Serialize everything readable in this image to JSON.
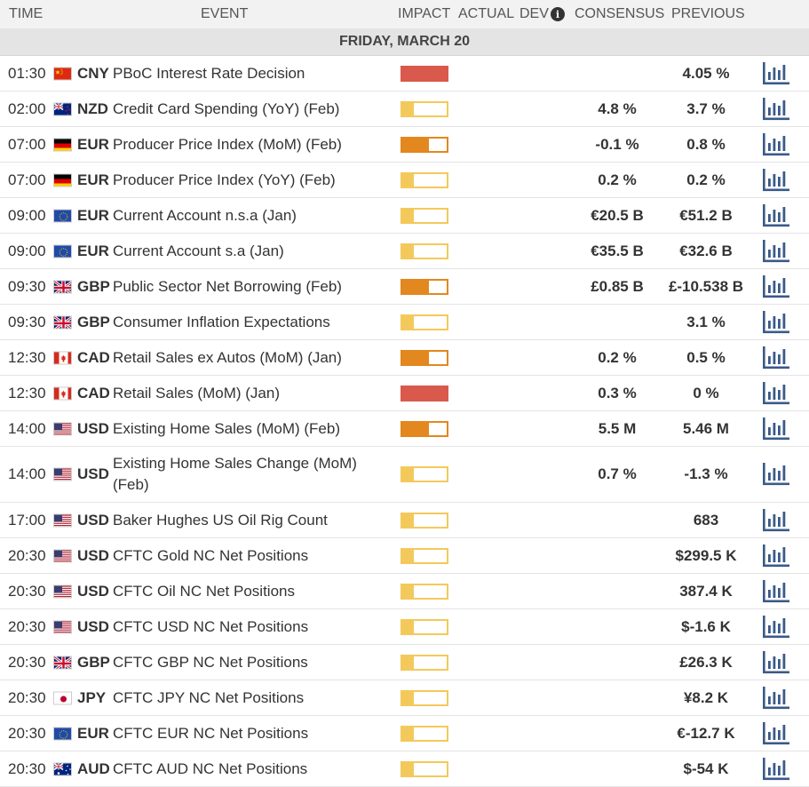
{
  "header": {
    "time": "TIME",
    "event": "EVENT",
    "impact": "IMPACT",
    "actual": "ACTUAL",
    "dev": "DEV",
    "consensus": "CONSENSUS",
    "previous": "PREVIOUS"
  },
  "date_label": "FRIDAY, MARCH 20",
  "colors": {
    "impact_low": "#f3c95b",
    "impact_medium": "#e3871f",
    "impact_high": "#d9594c",
    "chart_icon": "#3a5a88"
  },
  "rows": [
    {
      "time": "01:30",
      "flag": "cn-flag-icon",
      "currency": "CNY",
      "event": "PBoC Interest Rate Decision",
      "impact": "high",
      "consensus": "",
      "previous": "4.05 %"
    },
    {
      "time": "02:00",
      "flag": "nz-flag-icon",
      "currency": "NZD",
      "event": "Credit Card Spending (YoY) (Feb)",
      "impact": "low",
      "consensus": "4.8 %",
      "previous": "3.7 %"
    },
    {
      "time": "07:00",
      "flag": "de-flag-icon",
      "currency": "EUR",
      "event": "Producer Price Index (MoM) (Feb)",
      "impact": "medium",
      "consensus": "-0.1 %",
      "previous": "0.8 %"
    },
    {
      "time": "07:00",
      "flag": "de-flag-icon",
      "currency": "EUR",
      "event": "Producer Price Index (YoY) (Feb)",
      "impact": "low",
      "consensus": "0.2 %",
      "previous": "0.2 %"
    },
    {
      "time": "09:00",
      "flag": "eu-flag-icon",
      "currency": "EUR",
      "event": "Current Account n.s.a (Jan)",
      "impact": "low",
      "consensus": "€20.5 B",
      "previous": "€51.2 B"
    },
    {
      "time": "09:00",
      "flag": "eu-flag-icon",
      "currency": "EUR",
      "event": "Current Account s.a (Jan)",
      "impact": "low",
      "consensus": "€35.5 B",
      "previous": "€32.6 B"
    },
    {
      "time": "09:30",
      "flag": "gb-flag-icon",
      "currency": "GBP",
      "event": "Public Sector Net Borrowing (Feb)",
      "impact": "medium",
      "consensus": "£0.85 B",
      "previous": "£-10.538 B"
    },
    {
      "time": "09:30",
      "flag": "gb-flag-icon",
      "currency": "GBP",
      "event": "Consumer Inflation Expectations",
      "impact": "low",
      "consensus": "",
      "previous": "3.1 %"
    },
    {
      "time": "12:30",
      "flag": "ca-flag-icon",
      "currency": "CAD",
      "event": "Retail Sales ex Autos (MoM) (Jan)",
      "impact": "medium",
      "consensus": "0.2 %",
      "previous": "0.5 %"
    },
    {
      "time": "12:30",
      "flag": "ca-flag-icon",
      "currency": "CAD",
      "event": "Retail Sales (MoM) (Jan)",
      "impact": "high",
      "consensus": "0.3 %",
      "previous": "0 %"
    },
    {
      "time": "14:00",
      "flag": "us-flag-icon",
      "currency": "USD",
      "event": "Existing Home Sales (MoM) (Feb)",
      "impact": "medium",
      "consensus": "5.5 M",
      "previous": "5.46 M"
    },
    {
      "time": "14:00",
      "flag": "us-flag-icon",
      "currency": "USD",
      "event": "Existing Home Sales Change (MoM) (Feb)",
      "impact": "low",
      "consensus": "0.7 %",
      "previous": "-1.3 %",
      "tall": true
    },
    {
      "time": "17:00",
      "flag": "us-flag-icon",
      "currency": "USD",
      "event": "Baker Hughes US Oil Rig Count",
      "impact": "low",
      "consensus": "",
      "previous": "683"
    },
    {
      "time": "20:30",
      "flag": "us-flag-icon",
      "currency": "USD",
      "event": "CFTC Gold NC Net Positions",
      "impact": "low",
      "consensus": "",
      "previous": "$299.5 K"
    },
    {
      "time": "20:30",
      "flag": "us-flag-icon",
      "currency": "USD",
      "event": "CFTC Oil NC Net Positions",
      "impact": "low",
      "consensus": "",
      "previous": "387.4 K"
    },
    {
      "time": "20:30",
      "flag": "us-flag-icon",
      "currency": "USD",
      "event": "CFTC USD NC Net Positions",
      "impact": "low",
      "consensus": "",
      "previous": "$-1.6 K"
    },
    {
      "time": "20:30",
      "flag": "gb-flag-icon",
      "currency": "GBP",
      "event": "CFTC GBP NC Net Positions",
      "impact": "low",
      "consensus": "",
      "previous": "£26.3 K"
    },
    {
      "time": "20:30",
      "flag": "jp-flag-icon",
      "currency": "JPY",
      "event": "CFTC JPY NC Net Positions",
      "impact": "low",
      "consensus": "",
      "previous": "¥8.2 K"
    },
    {
      "time": "20:30",
      "flag": "eu-flag-icon",
      "currency": "EUR",
      "event": "CFTC EUR NC Net Positions",
      "impact": "low",
      "consensus": "",
      "previous": "€-12.7 K"
    },
    {
      "time": "20:30",
      "flag": "au-flag-icon",
      "currency": "AUD",
      "event": "CFTC AUD NC Net Positions",
      "impact": "low",
      "consensus": "",
      "previous": "$-54 K"
    }
  ]
}
